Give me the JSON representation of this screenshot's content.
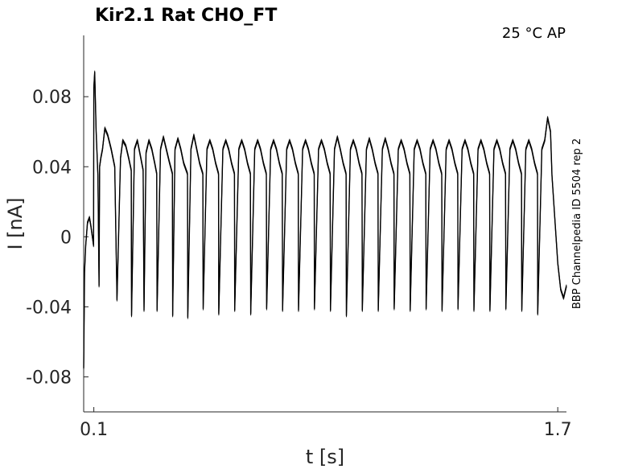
{
  "chart_data": {
    "type": "line",
    "title": "Kir2.1  Rat  CHO_FT",
    "condition_label": "25 °C  AP",
    "side_label": "BBP Channelpedia ID 5504 rep 2",
    "xlabel": "t [s]",
    "ylabel": "I [nA]",
    "xlim": [
      0.065,
      1.73
    ],
    "ylim": [
      -0.1,
      0.115
    ],
    "xticks": [
      0.1,
      1.7
    ],
    "xtick_labels": [
      "0.1",
      "1.7"
    ],
    "yticks": [
      -0.08,
      -0.04,
      0,
      0.04,
      0.08
    ],
    "ytick_labels": [
      "-0.08",
      "-0.04",
      "0",
      "0.04",
      "0.08"
    ],
    "grid": false,
    "legend": false,
    "trace_color": "#000000",
    "series": [
      {
        "x": [
          0.065,
          0.068,
          0.072,
          0.078,
          0.085,
          0.09,
          0.095,
          0.099,
          0.1,
          0.103,
          0.108,
          0.114,
          0.118,
          0.12,
          0.124,
          0.13,
          0.138,
          0.148,
          0.16,
          0.172,
          0.18,
          0.192,
          0.2,
          0.21,
          0.22,
          0.229,
          0.23,
          0.24,
          0.25,
          0.262,
          0.27,
          0.273,
          0.28,
          0.29,
          0.3,
          0.31,
          0.317,
          0.318,
          0.33,
          0.34,
          0.35,
          0.36,
          0.371,
          0.372,
          0.38,
          0.39,
          0.4,
          0.41,
          0.423,
          0.424,
          0.435,
          0.445,
          0.455,
          0.465,
          0.476,
          0.477,
          0.49,
          0.5,
          0.51,
          0.52,
          0.53,
          0.531,
          0.545,
          0.555,
          0.565,
          0.575,
          0.585,
          0.586,
          0.6,
          0.61,
          0.62,
          0.63,
          0.64,
          0.641,
          0.655,
          0.665,
          0.675,
          0.685,
          0.695,
          0.696,
          0.71,
          0.72,
          0.73,
          0.74,
          0.75,
          0.751,
          0.765,
          0.775,
          0.785,
          0.795,
          0.805,
          0.806,
          0.82,
          0.83,
          0.84,
          0.85,
          0.86,
          0.861,
          0.875,
          0.885,
          0.895,
          0.905,
          0.915,
          0.916,
          0.93,
          0.94,
          0.95,
          0.96,
          0.97,
          0.971,
          0.985,
          0.995,
          1.005,
          1.015,
          1.025,
          1.026,
          1.04,
          1.05,
          1.06,
          1.07,
          1.08,
          1.081,
          1.095,
          1.105,
          1.115,
          1.125,
          1.135,
          1.136,
          1.15,
          1.16,
          1.17,
          1.18,
          1.19,
          1.191,
          1.205,
          1.215,
          1.225,
          1.235,
          1.245,
          1.246,
          1.26,
          1.27,
          1.28,
          1.29,
          1.3,
          1.301,
          1.315,
          1.325,
          1.335,
          1.345,
          1.355,
          1.356,
          1.37,
          1.38,
          1.39,
          1.4,
          1.41,
          1.411,
          1.425,
          1.435,
          1.445,
          1.455,
          1.465,
          1.466,
          1.48,
          1.49,
          1.5,
          1.51,
          1.52,
          1.521,
          1.535,
          1.545,
          1.555,
          1.565,
          1.575,
          1.576,
          1.59,
          1.6,
          1.61,
          1.62,
          1.63,
          1.631,
          1.645,
          1.655,
          1.665,
          1.675,
          1.68,
          1.69,
          1.7,
          1.71,
          1.72,
          1.73
        ],
        "y": [
          -0.075,
          -0.02,
          -0.005,
          0.008,
          0.011,
          0.006,
          0.0,
          -0.005,
          0.085,
          0.094,
          0.06,
          0.035,
          -0.028,
          0.04,
          0.045,
          0.05,
          0.062,
          0.058,
          0.05,
          0.04,
          -0.036,
          0.045,
          0.055,
          0.052,
          0.045,
          0.038,
          -0.045,
          0.05,
          0.055,
          0.045,
          0.038,
          -0.042,
          0.048,
          0.055,
          0.05,
          0.042,
          0.036,
          -0.042,
          0.05,
          0.057,
          0.05,
          0.043,
          0.036,
          -0.045,
          0.05,
          0.056,
          0.05,
          0.042,
          0.036,
          -0.046,
          0.05,
          0.058,
          0.05,
          0.042,
          0.036,
          -0.041,
          0.05,
          0.055,
          0.05,
          0.042,
          0.036,
          -0.044,
          0.05,
          0.055,
          0.05,
          0.042,
          0.036,
          -0.042,
          0.05,
          0.055,
          0.05,
          0.042,
          0.036,
          -0.044,
          0.05,
          0.055,
          0.05,
          0.042,
          0.036,
          -0.041,
          0.05,
          0.055,
          0.05,
          0.042,
          0.036,
          -0.042,
          0.05,
          0.055,
          0.05,
          0.042,
          0.036,
          -0.042,
          0.05,
          0.055,
          0.05,
          0.042,
          0.036,
          -0.041,
          0.05,
          0.055,
          0.05,
          0.042,
          0.036,
          -0.042,
          0.05,
          0.057,
          0.05,
          0.042,
          0.036,
          -0.045,
          0.05,
          0.055,
          0.05,
          0.042,
          0.036,
          -0.042,
          0.05,
          0.056,
          0.05,
          0.042,
          0.036,
          -0.042,
          0.05,
          0.056,
          0.05,
          0.042,
          0.036,
          -0.041,
          0.05,
          0.055,
          0.05,
          0.042,
          0.036,
          -0.042,
          0.05,
          0.055,
          0.05,
          0.042,
          0.036,
          -0.041,
          0.05,
          0.055,
          0.05,
          0.042,
          0.036,
          -0.042,
          0.05,
          0.055,
          0.05,
          0.042,
          0.036,
          -0.041,
          0.05,
          0.055,
          0.05,
          0.042,
          0.036,
          -0.042,
          0.05,
          0.055,
          0.05,
          0.042,
          0.036,
          -0.042,
          0.05,
          0.055,
          0.05,
          0.042,
          0.036,
          -0.041,
          0.05,
          0.055,
          0.05,
          0.042,
          0.036,
          -0.042,
          0.05,
          0.055,
          0.05,
          0.042,
          0.036,
          -0.044,
          0.05,
          0.055,
          0.068,
          0.06,
          0.035,
          0.01,
          -0.015,
          -0.03,
          -0.035,
          -0.028
        ]
      }
    ]
  }
}
